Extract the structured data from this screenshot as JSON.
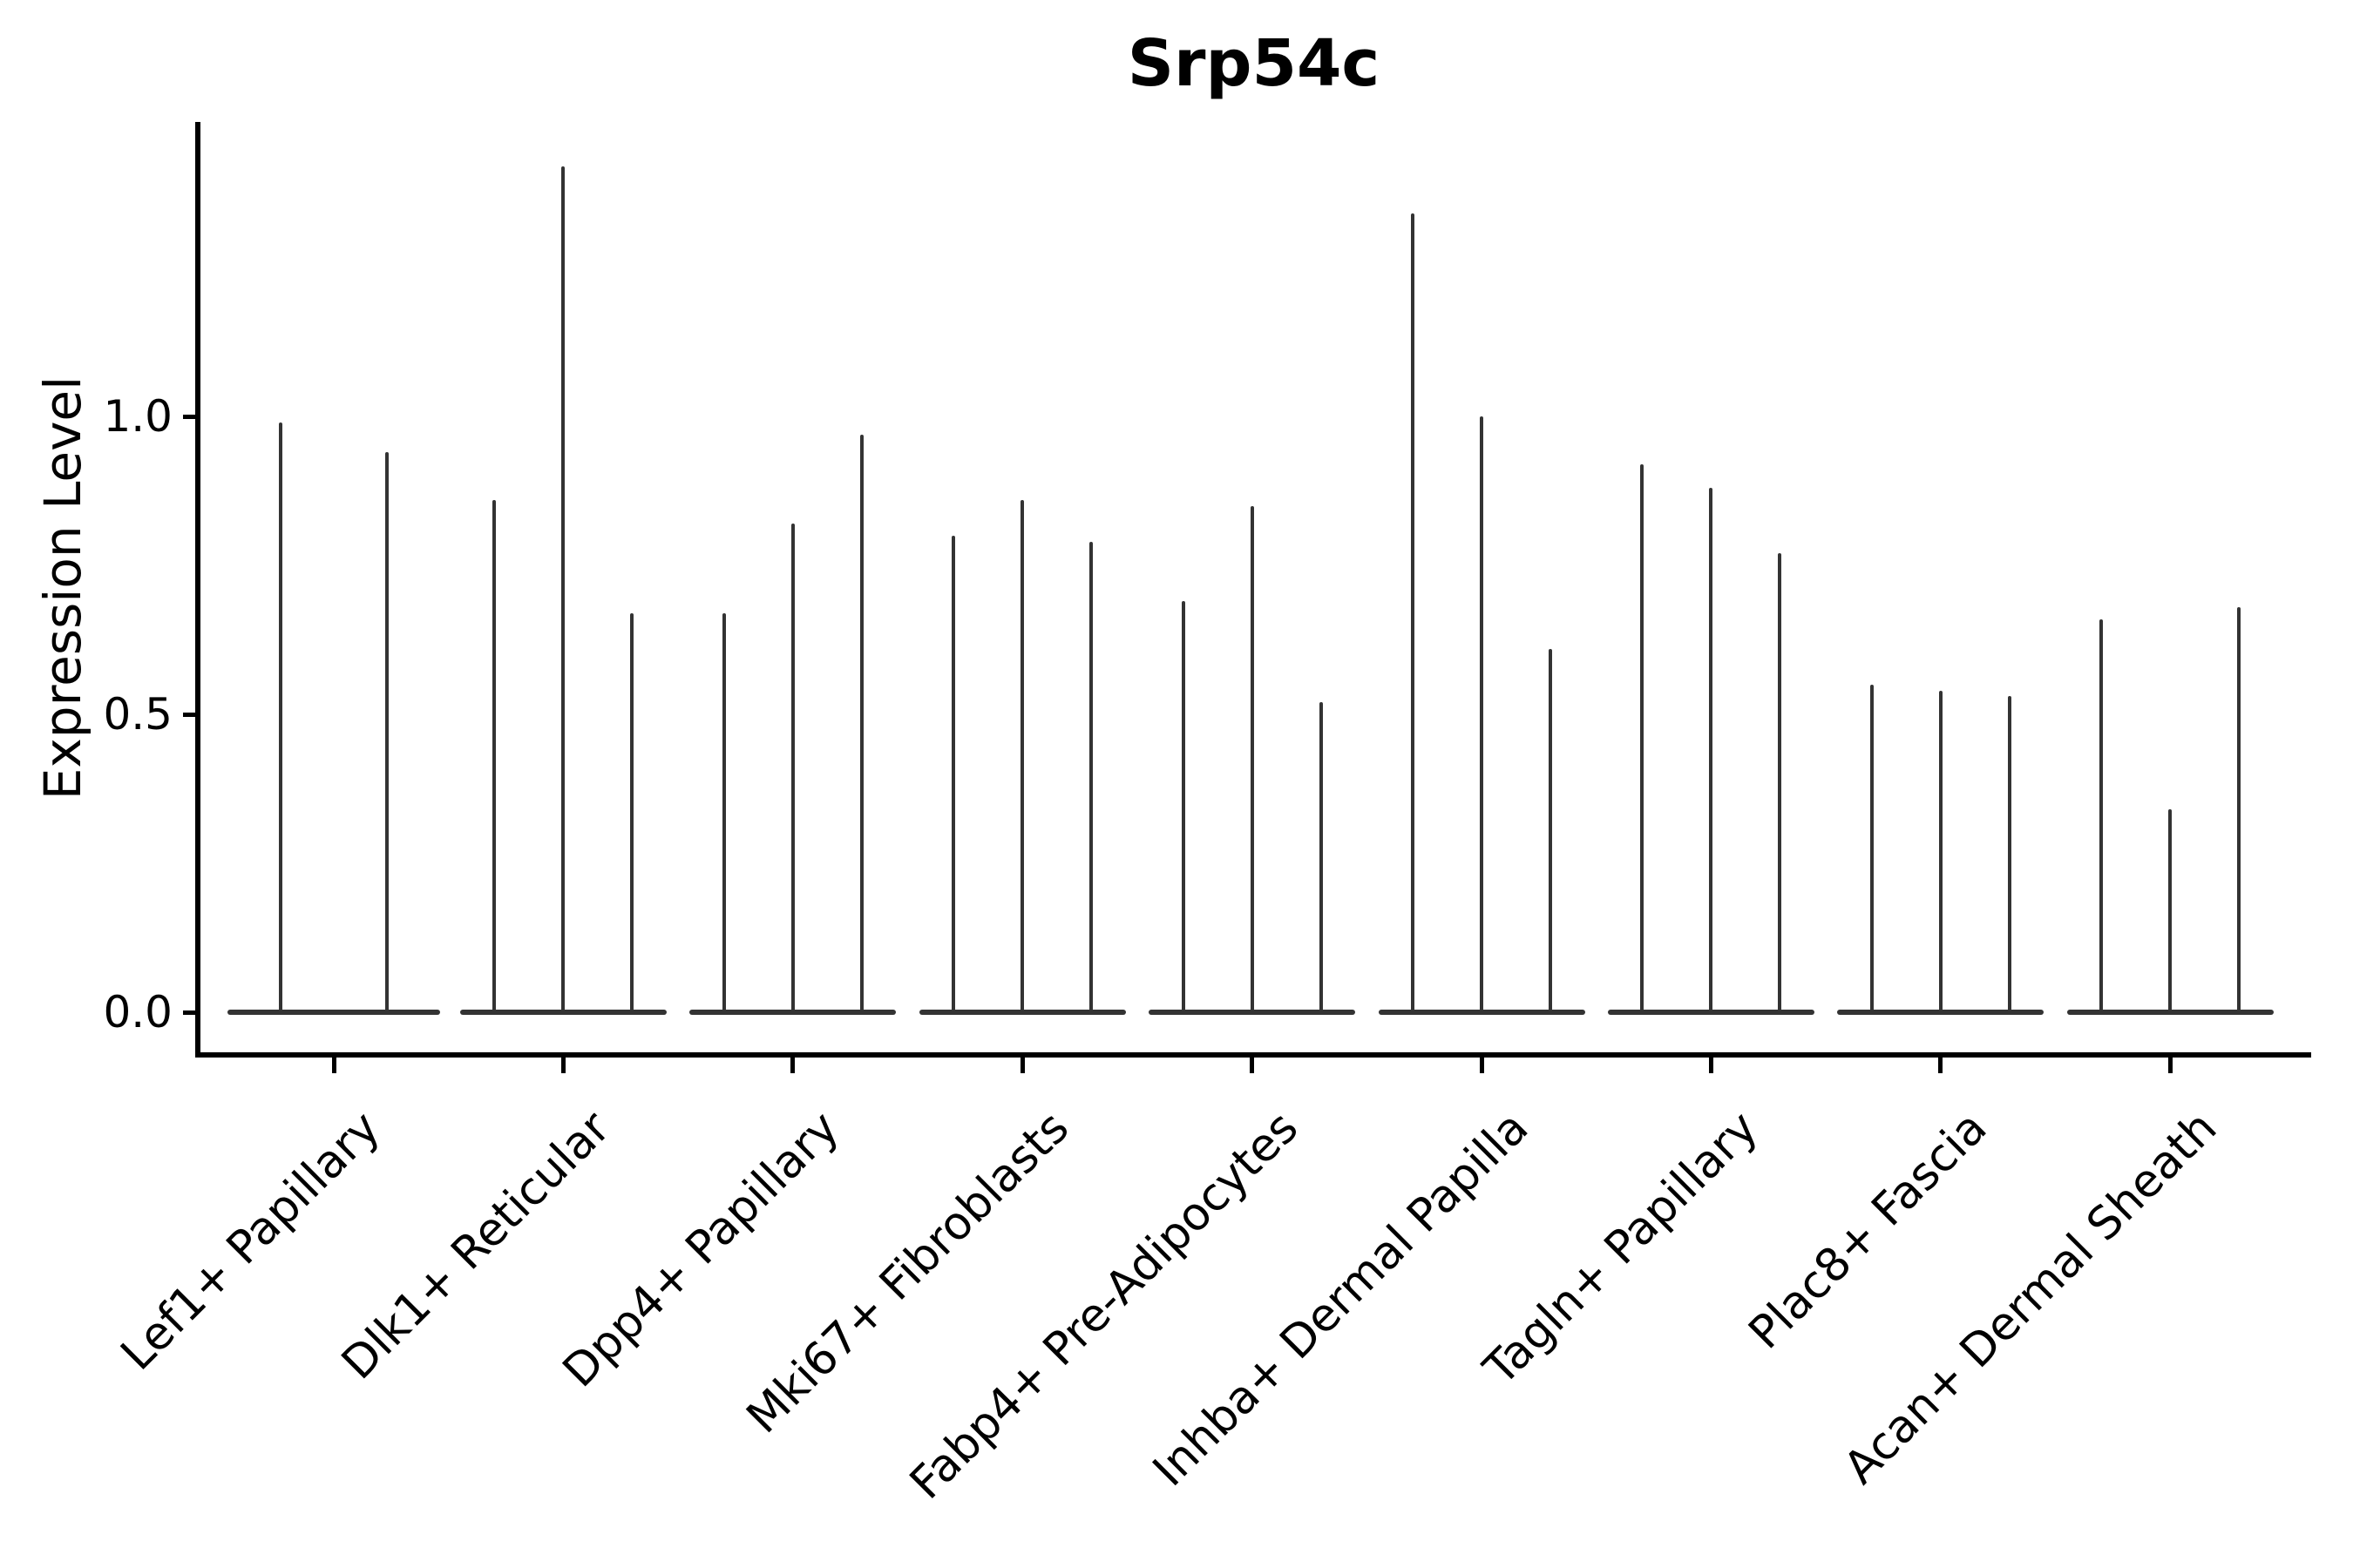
{
  "chart_data": {
    "type": "violin",
    "title": "Srp54c",
    "xlabel": "",
    "ylabel": "Expression Level",
    "ylim": [
      -0.07,
      1.49
    ],
    "grid": false,
    "legend": "none",
    "spines": [
      "left",
      "bottom"
    ],
    "line_color": "#333333",
    "axis_color": "#000000",
    "background_color": "#ffffff",
    "yticks": [
      {
        "value": 0.0,
        "label": "0.0"
      },
      {
        "value": 0.5,
        "label": "0.5"
      },
      {
        "value": 1.0,
        "label": "1.0"
      }
    ],
    "categories": [
      {
        "label": "Lef1+ Papillary",
        "violin_max_values": [
          0.99,
          0.94
        ]
      },
      {
        "label": "Dlk1+ Reticular",
        "violin_max_values": [
          0.86,
          1.42,
          0.67
        ]
      },
      {
        "label": "Dpp4+ Papillary",
        "violin_max_values": [
          0.67,
          0.82,
          0.97
        ]
      },
      {
        "label": "Mki67+ Fibroblasts",
        "violin_max_values": [
          0.8,
          0.86,
          0.79
        ]
      },
      {
        "label": "Fabp4+ Pre-Adipocytes",
        "violin_max_values": [
          0.69,
          0.85,
          0.52
        ]
      },
      {
        "label": "Inhba+ Dermal Papilla",
        "violin_max_values": [
          1.34,
          1.0,
          0.61
        ]
      },
      {
        "label": "Tagln+ Papillary",
        "violin_max_values": [
          0.92,
          0.88,
          0.77
        ]
      },
      {
        "label": "Plac8+ Fascia",
        "violin_max_values": [
          0.55,
          0.54,
          0.53
        ]
      },
      {
        "label": "Acan+ Dermal Sheath",
        "violin_max_values": [
          0.66,
          0.34,
          0.68
        ]
      }
    ]
  }
}
